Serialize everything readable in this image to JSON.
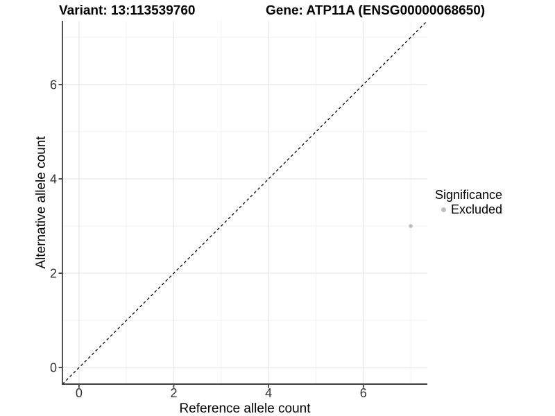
{
  "chart_data": {
    "type": "scatter",
    "title_left": "Variant: 13:113539760",
    "title_right": "Gene: ATP11A (ENSG00000068650)",
    "xlabel": "Reference allele count",
    "ylabel": "Alternative allele count",
    "xlim": [
      -0.35,
      7.35
    ],
    "ylim": [
      -0.35,
      7.35
    ],
    "x_major_ticks": [
      0,
      2,
      4,
      6
    ],
    "y_major_ticks": [
      0,
      2,
      4,
      6
    ],
    "x_minor_ticks": [
      1,
      3,
      5,
      7
    ],
    "y_minor_ticks": [
      1,
      3,
      5,
      7
    ],
    "grid": "on",
    "series": [
      {
        "name": "Excluded",
        "marker": "circle",
        "color": "#bdbdbd",
        "points": [
          {
            "x": 7,
            "y": 3
          }
        ]
      }
    ],
    "reference_line": {
      "type": "identity",
      "equation": "y = x",
      "style": "dashed",
      "color": "#000000"
    },
    "legend": {
      "title": "Significance",
      "position": "right",
      "entries": [
        {
          "label": "Excluded",
          "color": "#bdbdbd",
          "marker": "circle"
        }
      ]
    }
  },
  "colors": {
    "background": "#ffffff",
    "grid_major": "#e6e6e6",
    "grid_minor": "#f1f1f1",
    "axis_line": "#404040",
    "tick_label": "#333333",
    "point": "#bdbdbd",
    "title_text": "#000000"
  }
}
